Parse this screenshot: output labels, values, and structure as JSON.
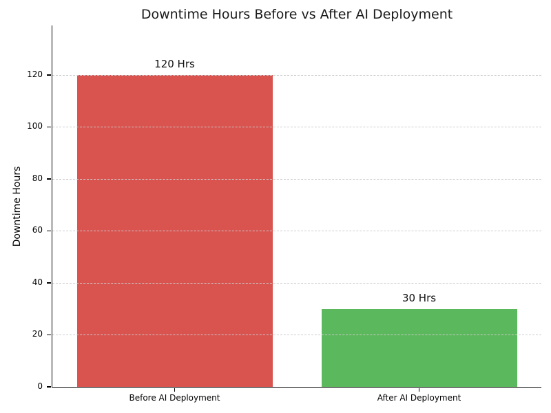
{
  "page": {
    "background": "#ffffff"
  },
  "chart_data": {
    "type": "bar",
    "title": "Downtime Hours Before vs After AI Deployment",
    "title_color": "#1a1a1a",
    "xlabel": "",
    "ylabel": "Downtime Hours",
    "categories": [
      "Before AI Deployment",
      "After AI Deployment"
    ],
    "values": [
      120,
      30
    ],
    "bar_labels": [
      "120 Hrs",
      "30 Hrs"
    ],
    "bar_colors": [
      "#d9534f",
      "#5cb85c"
    ],
    "bar_width_fraction": 0.8,
    "yticks": [
      0,
      20,
      40,
      60,
      80,
      100,
      120
    ],
    "ylim": [
      0,
      139
    ],
    "grid": {
      "axis": "y",
      "style": "dashed",
      "color": "#cccccc",
      "drawn_above_bars": true
    },
    "axis_color": "#000000",
    "spines": [
      "left",
      "bottom"
    ],
    "legend": "none"
  }
}
